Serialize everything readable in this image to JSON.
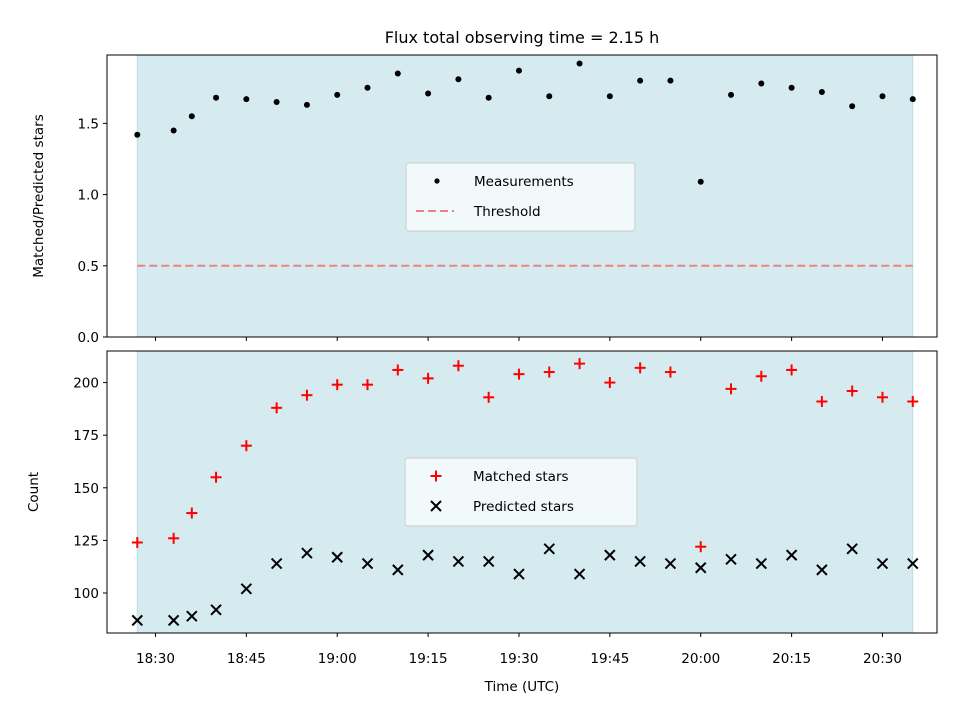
{
  "title": "Flux total observing time = 2.15 h",
  "xlabel": "Time (UTC)",
  "colors": {
    "span_fill": "#d5ebf0",
    "measurement": "#000000",
    "threshold": "#f08080",
    "matched": "#ff0000",
    "predicted": "#000000"
  },
  "chart_data": [
    {
      "type": "scatter",
      "title": "Flux total observing time = 2.15 h",
      "ylabel": "Matched/Predicted stars",
      "xlabel": "",
      "xlim": [
        "18:22",
        "20:39"
      ],
      "ylim": [
        0,
        1.98
      ],
      "yticks": [
        0.0,
        0.5,
        1.0,
        1.5
      ],
      "xticks": [
        "18:30",
        "18:45",
        "19:00",
        "19:15",
        "19:30",
        "19:45",
        "20:00",
        "20:15",
        "20:30"
      ],
      "shaded_span": [
        "18:27",
        "20:35"
      ],
      "legend": "center",
      "series": [
        {
          "name": "Measurements",
          "marker": "dot",
          "x": [
            "18:27",
            "18:33",
            "18:36",
            "18:40",
            "18:45",
            "18:50",
            "18:55",
            "19:00",
            "19:05",
            "19:10",
            "19:15",
            "19:20",
            "19:25",
            "19:30",
            "19:35",
            "19:40",
            "19:45",
            "19:50",
            "19:55",
            "20:00",
            "20:05",
            "20:10",
            "20:15",
            "20:20",
            "20:25",
            "20:30",
            "20:35"
          ],
          "y": [
            1.42,
            1.45,
            1.55,
            1.68,
            1.67,
            1.65,
            1.63,
            1.7,
            1.75,
            1.85,
            1.71,
            1.81,
            1.68,
            1.87,
            1.69,
            1.92,
            1.69,
            1.8,
            1.8,
            1.09,
            1.7,
            1.78,
            1.75,
            1.72,
            1.62,
            1.69,
            1.67
          ]
        },
        {
          "name": "Threshold",
          "marker": "dashed-line",
          "y": 0.5
        }
      ]
    },
    {
      "type": "scatter",
      "ylabel": "Count",
      "xlabel": "Time (UTC)",
      "xlim": [
        "18:22",
        "20:39"
      ],
      "ylim": [
        81,
        215
      ],
      "yticks": [
        100,
        125,
        150,
        175,
        200
      ],
      "xticks": [
        "18:30",
        "18:45",
        "19:00",
        "19:15",
        "19:30",
        "19:45",
        "20:00",
        "20:15",
        "20:30"
      ],
      "shaded_span": [
        "18:27",
        "20:35"
      ],
      "legend": "center",
      "series": [
        {
          "name": "Matched stars",
          "marker": "plus",
          "x": [
            "18:27",
            "18:33",
            "18:36",
            "18:40",
            "18:45",
            "18:50",
            "18:55",
            "19:00",
            "19:05",
            "19:10",
            "19:15",
            "19:20",
            "19:25",
            "19:30",
            "19:35",
            "19:40",
            "19:45",
            "19:50",
            "19:55",
            "20:00",
            "20:05",
            "20:10",
            "20:15",
            "20:20",
            "20:25",
            "20:30",
            "20:35"
          ],
          "y": [
            124,
            126,
            138,
            155,
            170,
            188,
            194,
            199,
            199,
            206,
            202,
            208,
            193,
            204,
            205,
            209,
            200,
            207,
            205,
            122,
            197,
            203,
            206,
            191,
            196,
            193,
            191
          ]
        },
        {
          "name": "Predicted stars",
          "marker": "x",
          "x": [
            "18:27",
            "18:33",
            "18:36",
            "18:40",
            "18:45",
            "18:50",
            "18:55",
            "19:00",
            "19:05",
            "19:10",
            "19:15",
            "19:20",
            "19:25",
            "19:30",
            "19:35",
            "19:40",
            "19:45",
            "19:50",
            "19:55",
            "20:00",
            "20:05",
            "20:10",
            "20:15",
            "20:20",
            "20:25",
            "20:30",
            "20:35"
          ],
          "y": [
            87,
            87,
            89,
            92,
            102,
            114,
            119,
            117,
            114,
            111,
            118,
            115,
            115,
            109,
            121,
            109,
            118,
            115,
            114,
            112,
            116,
            114,
            118,
            111,
            121,
            114,
            114
          ]
        }
      ]
    }
  ]
}
